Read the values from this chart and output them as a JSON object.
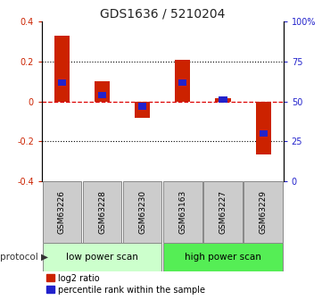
{
  "title": "GDS1636 / 5210204",
  "samples": [
    "GSM63226",
    "GSM63228",
    "GSM63230",
    "GSM63163",
    "GSM63227",
    "GSM63229"
  ],
  "log2_ratio": [
    0.33,
    0.1,
    -0.08,
    0.21,
    0.015,
    -0.265
  ],
  "percentile_rank": [
    62,
    54,
    47,
    62,
    51,
    30
  ],
  "ylim_left": [
    -0.4,
    0.4
  ],
  "ylim_right": [
    0,
    100
  ],
  "bar_color": "#cc2200",
  "blue_color": "#2222cc",
  "dotted_line_color": "#000000",
  "dashed_line_color": "#dd0000",
  "protocol_groups": [
    {
      "label": "low power scan",
      "samples": [
        0,
        1,
        2
      ],
      "color": "#ccffcc"
    },
    {
      "label": "high power scan",
      "samples": [
        3,
        4,
        5
      ],
      "color": "#55ee55"
    }
  ],
  "legend_red": "log2 ratio",
  "legend_blue": "percentile rank within the sample",
  "left_axis_color": "#cc2200",
  "right_axis_color": "#2222cc",
  "background_color": "#ffffff",
  "sample_box_color": "#cccccc",
  "figsize": [
    3.61,
    3.45
  ],
  "dpi": 100
}
